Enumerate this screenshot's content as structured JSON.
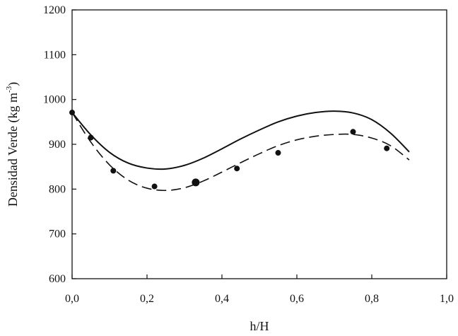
{
  "chart_data": {
    "type": "scatter",
    "xlabel": "h/H",
    "ylabel": {
      "prefix": "Densidad Verde (kg m",
      "superscript": "-3",
      "suffix": ")"
    },
    "xlim": [
      0,
      1.0
    ],
    "ylim": [
      600,
      1200
    ],
    "x_ticks": [
      "0,0",
      "0,2",
      "0,4",
      "0,6",
      "0,8",
      "1,0"
    ],
    "y_ticks": [
      "600",
      "700",
      "800",
      "900",
      "1000",
      "1100",
      "1200"
    ],
    "x_tick_values": [
      0,
      0.2,
      0.4,
      0.6,
      0.8,
      1.0
    ],
    "y_tick_values": [
      600,
      700,
      800,
      900,
      1000,
      1100,
      1200
    ],
    "grid": false,
    "points": [
      {
        "x": 0.0,
        "y": 971,
        "marker": "small"
      },
      {
        "x": 0.05,
        "y": 915,
        "marker": "small"
      },
      {
        "x": 0.11,
        "y": 841,
        "marker": "small"
      },
      {
        "x": 0.22,
        "y": 806,
        "marker": "small"
      },
      {
        "x": 0.33,
        "y": 815,
        "marker": "large"
      },
      {
        "x": 0.44,
        "y": 846,
        "marker": "small"
      },
      {
        "x": 0.55,
        "y": 881,
        "marker": "small"
      },
      {
        "x": 0.75,
        "y": 928,
        "marker": "small"
      },
      {
        "x": 0.84,
        "y": 891,
        "marker": "small"
      }
    ],
    "series": [
      {
        "style": "solid",
        "x": [
          0.0,
          0.05,
          0.1,
          0.15,
          0.2,
          0.25,
          0.3,
          0.35,
          0.4,
          0.45,
          0.5,
          0.55,
          0.6,
          0.65,
          0.7,
          0.75,
          0.8,
          0.85,
          0.9
        ],
        "y": [
          971,
          921,
          882,
          858,
          847,
          845,
          853,
          869,
          890,
          912,
          932,
          950,
          963,
          971,
          974,
          970,
          955,
          925,
          883
        ]
      },
      {
        "style": "dashed",
        "x": [
          0.0,
          0.05,
          0.1,
          0.15,
          0.2,
          0.25,
          0.3,
          0.35,
          0.4,
          0.45,
          0.5,
          0.55,
          0.6,
          0.65,
          0.7,
          0.75,
          0.8,
          0.85,
          0.9
        ],
        "y": [
          971,
          905,
          854,
          820,
          802,
          797,
          803,
          818,
          838,
          859,
          879,
          897,
          910,
          918,
          922,
          922,
          914,
          897,
          865
        ]
      }
    ],
    "colors": {
      "ink": "#111111",
      "background": "#ffffff"
    }
  }
}
